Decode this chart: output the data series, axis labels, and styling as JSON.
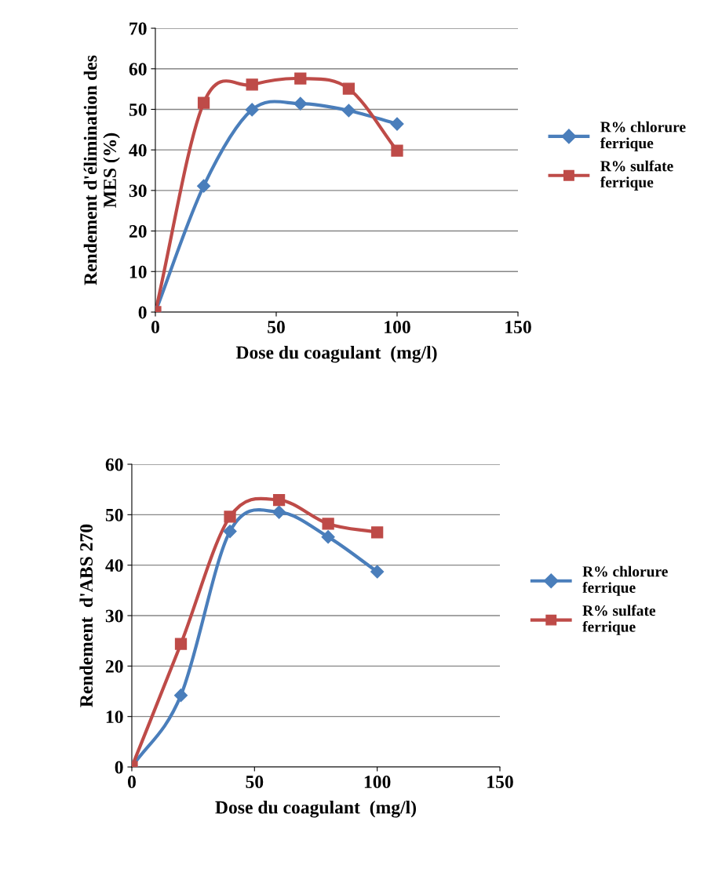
{
  "chart_data": [
    {
      "type": "line",
      "xlabel": "Dose du coagulant  (mg/l)",
      "ylabel": "Rendement d'élimination des\nMES (%)",
      "x": [
        0,
        20,
        40,
        60,
        80,
        100
      ],
      "xlim": [
        0,
        150
      ],
      "xticks": [
        0,
        50,
        100,
        150
      ],
      "ylim": [
        0,
        70
      ],
      "yticks": [
        0,
        10,
        20,
        30,
        40,
        50,
        60,
        70
      ],
      "grid": "y",
      "legend": "right",
      "series": [
        {
          "name": "R% chlorure\nferrique",
          "color": "#4a7ebb",
          "marker": "diamond",
          "values": [
            0,
            31.1,
            49.9,
            51.4,
            49.7,
            46.4
          ]
        },
        {
          "name": "R% sulfate\nferrique",
          "color": "#be4b48",
          "marker": "square",
          "values": [
            0,
            51.6,
            56.1,
            57.6,
            55.1,
            39.8
          ]
        }
      ]
    },
    {
      "type": "line",
      "xlabel": "Dose du coagulant  (mg/l)",
      "ylabel": "Rendement  d'ABS 270",
      "x": [
        0,
        20,
        40,
        60,
        80,
        100
      ],
      "xlim": [
        0,
        150
      ],
      "xticks": [
        0,
        50,
        100,
        150
      ],
      "ylim": [
        0,
        60
      ],
      "yticks": [
        0,
        10,
        20,
        30,
        40,
        50,
        60
      ],
      "grid": "y",
      "legend": "right",
      "series": [
        {
          "name": "R% chlorure\nferrique",
          "color": "#4a7ebb",
          "marker": "diamond",
          "values": [
            0,
            14.2,
            46.7,
            50.5,
            45.6,
            38.7
          ]
        },
        {
          "name": "R% sulfate\nferrique",
          "color": "#be4b48",
          "marker": "square",
          "values": [
            0,
            24.4,
            49.6,
            52.9,
            48.2,
            46.5
          ]
        }
      ]
    }
  ]
}
